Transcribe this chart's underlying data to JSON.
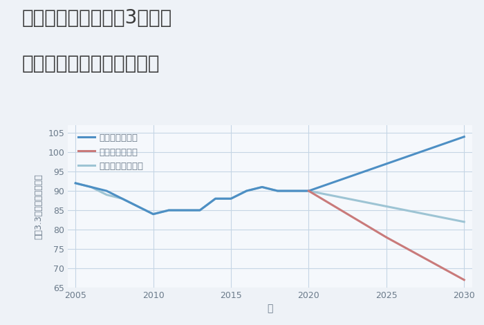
{
  "title_line1": "三重県名張市希央台3番町の",
  "title_line2": "中古マンションの価格推移",
  "xlabel": "年",
  "ylabel": "平（3.3㎡）単価（万円）",
  "background_color": "#eef2f7",
  "plot_background_color": "#f5f8fc",
  "good_scenario": {
    "label": "グッドシナリオ",
    "color": "#4d8fc4",
    "x": [
      2005,
      2006,
      2007,
      2008,
      2009,
      2010,
      2011,
      2012,
      2013,
      2014,
      2015,
      2016,
      2017,
      2018,
      2019,
      2020,
      2025,
      2030
    ],
    "y": [
      92,
      91,
      90,
      88,
      86,
      84,
      85,
      85,
      85,
      88,
      88,
      90,
      91,
      90,
      90,
      90,
      97,
      104
    ]
  },
  "bad_scenario": {
    "label": "バッドシナリオ",
    "color": "#c97a7a",
    "x": [
      2020,
      2025,
      2030
    ],
    "y": [
      90,
      78,
      67
    ]
  },
  "normal_scenario": {
    "label": "ノーマルシナリオ",
    "color": "#9dc4d4",
    "x": [
      2005,
      2006,
      2007,
      2008,
      2009,
      2010,
      2011,
      2012,
      2013,
      2014,
      2015,
      2016,
      2017,
      2018,
      2019,
      2020,
      2025,
      2030
    ],
    "y": [
      92,
      91,
      89,
      88,
      86,
      84,
      85,
      85,
      85,
      88,
      88,
      90,
      91,
      90,
      90,
      90,
      86,
      82
    ]
  },
  "ylim": [
    65,
    107
  ],
  "xlim": [
    2004.5,
    2030.5
  ],
  "yticks": [
    65,
    70,
    75,
    80,
    85,
    90,
    95,
    100,
    105
  ],
  "xticks": [
    2005,
    2010,
    2015,
    2020,
    2025,
    2030
  ],
  "grid_color": "#c5d5e5",
  "title_color": "#3a3a3a",
  "tick_color": "#6a7a8a",
  "axis_label_color": "#6a7a8a",
  "legend_fontsize": 9.5,
  "title_fontsize": 20,
  "line_width": 2.2
}
